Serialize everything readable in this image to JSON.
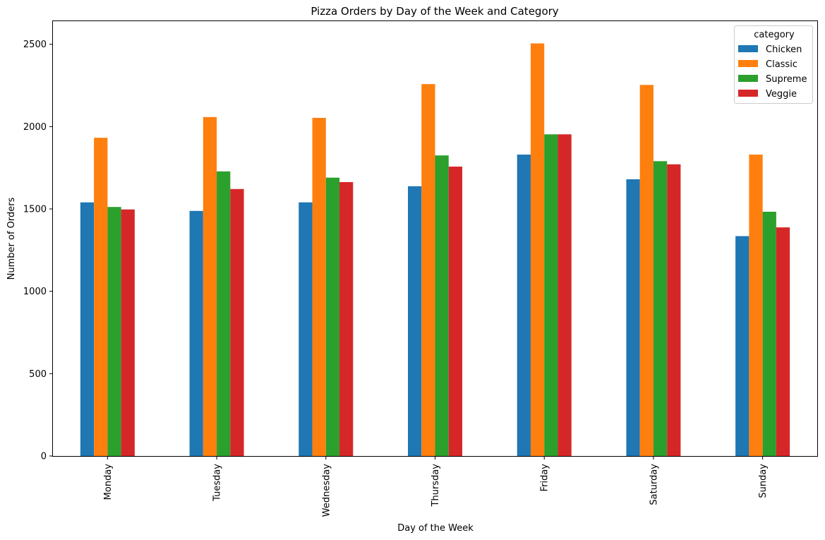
{
  "chart_data": {
    "type": "bar",
    "title": "Pizza Orders by Day of the Week and Category",
    "xlabel": "Day of the Week",
    "ylabel": "Number of Orders",
    "categories": [
      "Monday",
      "Tuesday",
      "Wednesday",
      "Thursday",
      "Friday",
      "Saturday",
      "Sunday"
    ],
    "ylim": [
      0,
      2640
    ],
    "yticks": [
      0,
      500,
      1000,
      1500,
      2000,
      2500
    ],
    "legend_title": "category",
    "legend_position": "top-right",
    "grid": false,
    "series": [
      {
        "name": "Chicken",
        "color": "#1f77b4",
        "values": [
          1540,
          1488,
          1540,
          1638,
          1830,
          1680,
          1335
        ]
      },
      {
        "name": "Classic",
        "color": "#ff7f0e",
        "values": [
          1932,
          2058,
          2053,
          2258,
          2505,
          2253,
          1830
        ]
      },
      {
        "name": "Supreme",
        "color": "#2ca02c",
        "values": [
          1512,
          1728,
          1690,
          1825,
          1953,
          1790,
          1483
        ]
      },
      {
        "name": "Veggie",
        "color": "#d62728",
        "values": [
          1497,
          1621,
          1663,
          1757,
          1953,
          1771,
          1388
        ]
      }
    ]
  }
}
